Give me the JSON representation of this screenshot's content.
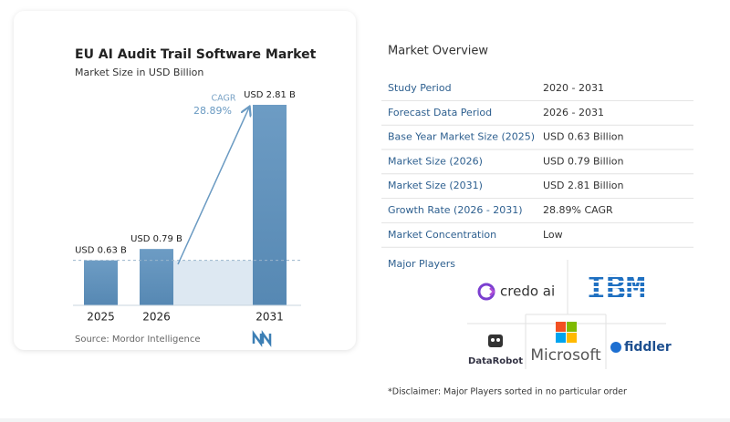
{
  "chart_data": {
    "type": "bar",
    "title": "EU AI Audit Trail Software Market",
    "subtitle": "Market Size in USD Billion",
    "categories": [
      "2025",
      "2026",
      "2031"
    ],
    "values": [
      0.63,
      0.79,
      2.81
    ],
    "value_labels": [
      "USD 0.63 B",
      "USD 0.79 B",
      "USD 2.81 B"
    ],
    "color": "#6797c0",
    "annotation": {
      "label": "CAGR",
      "value": "28.89%"
    },
    "source": "Source:  Mordor Intelligence"
  },
  "overview": {
    "title": "Market Overview",
    "rows": [
      [
        "Study Period",
        "2020 - 2031"
      ],
      [
        "Forecast Data Period",
        "2026 - 2031"
      ],
      [
        "Base Year Market Size (2025)",
        "USD 0.63 Billion"
      ],
      [
        "Market Size (2026)",
        "USD 0.79 Billion"
      ],
      [
        "Market Size (2031)",
        "USD 2.81 Billion"
      ],
      [
        "Growth Rate (2026 - 2031)",
        "28.89% CAGR"
      ],
      [
        "Market Concentration",
        "Low"
      ]
    ]
  },
  "players": {
    "title": "Major Players",
    "names": [
      "credo ai",
      "IBM",
      "DataRobot",
      "Microsoft",
      "fiddler"
    ]
  },
  "disclaimer": "*Disclaimer: Major Players sorted in no particular order"
}
